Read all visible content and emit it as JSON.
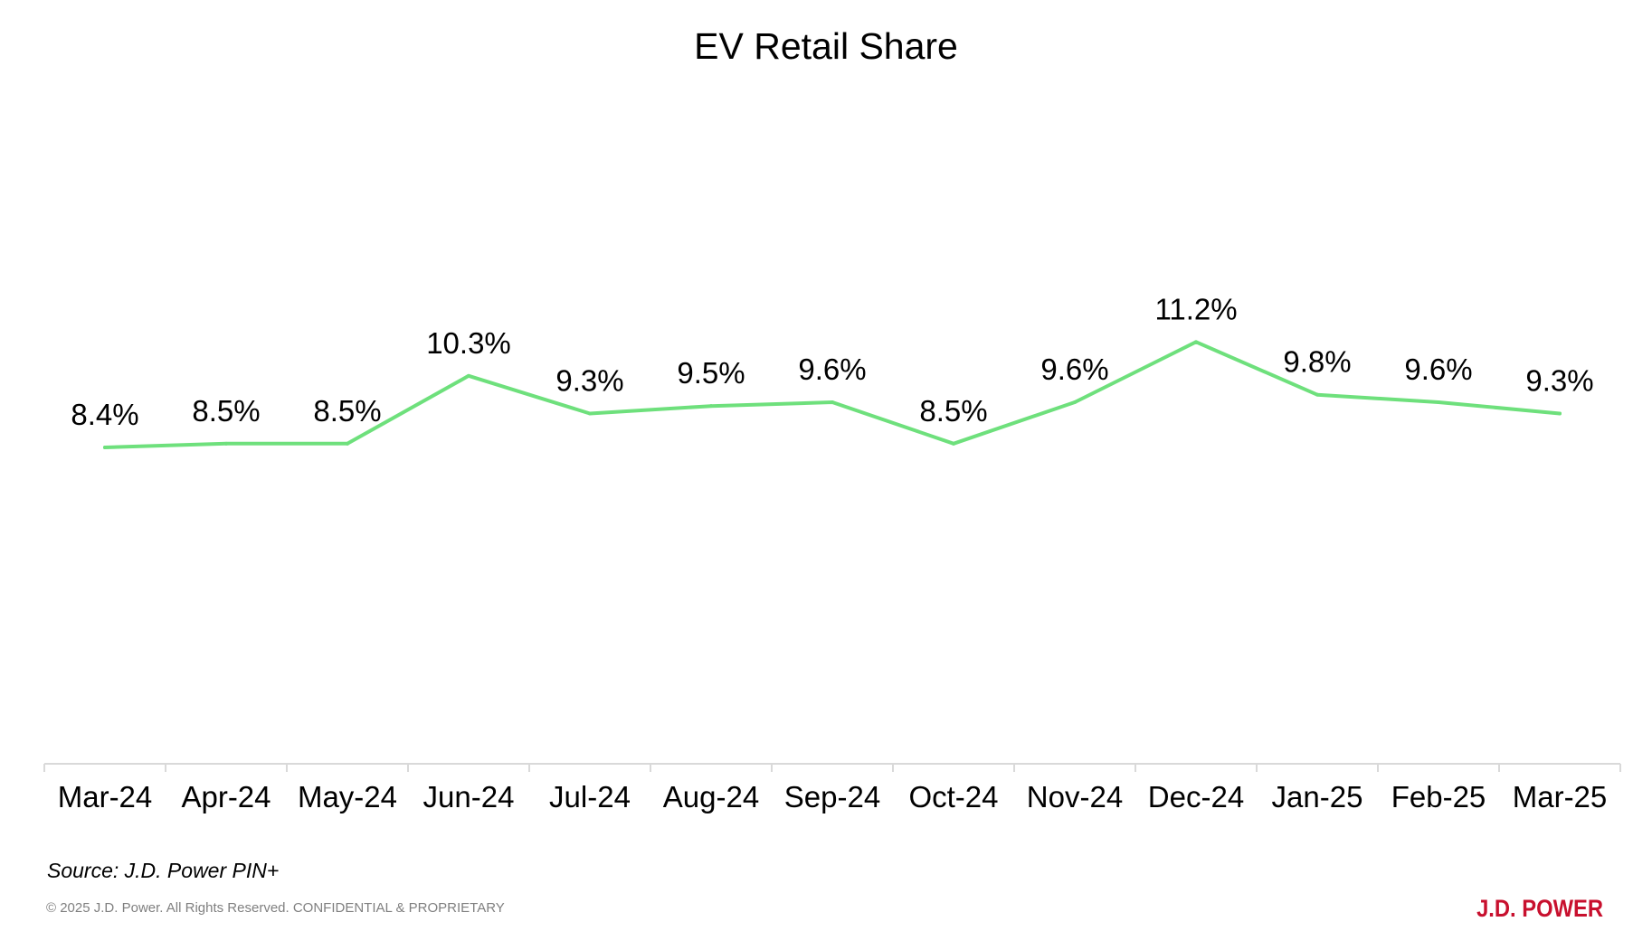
{
  "page": {
    "source": "Source: J.D. Power PIN+",
    "copyright": "© 2025 J.D. Power. All Rights Reserved. CONFIDENTIAL & PROPRIETARY",
    "brand": "J.D. POWER",
    "brand_color": "#c8102e"
  },
  "chart_data": {
    "type": "line",
    "title": "EV Retail Share",
    "xlabel": "",
    "ylabel": "",
    "categories": [
      "Mar-24",
      "Apr-24",
      "May-24",
      "Jun-24",
      "Jul-24",
      "Aug-24",
      "Sep-24",
      "Oct-24",
      "Nov-24",
      "Dec-24",
      "Jan-25",
      "Feb-25",
      "Mar-25"
    ],
    "series": [
      {
        "values": [
          8.4,
          8.5,
          8.5,
          10.3,
          9.3,
          9.5,
          9.6,
          8.5,
          9.6,
          11.2,
          9.8,
          9.6,
          9.3
        ],
        "labels": [
          "8.4%",
          "8.5%",
          "8.5%",
          "10.3%",
          "9.3%",
          "9.5%",
          "9.6%",
          "8.5%",
          "9.6%",
          "11.2%",
          "9.8%",
          "9.6%",
          "9.3%"
        ],
        "color": "#6ee07c"
      }
    ],
    "ylim": [
      0,
      18
    ],
    "grid": false,
    "legend": "none",
    "axis_color": "#d9d9d9"
  }
}
